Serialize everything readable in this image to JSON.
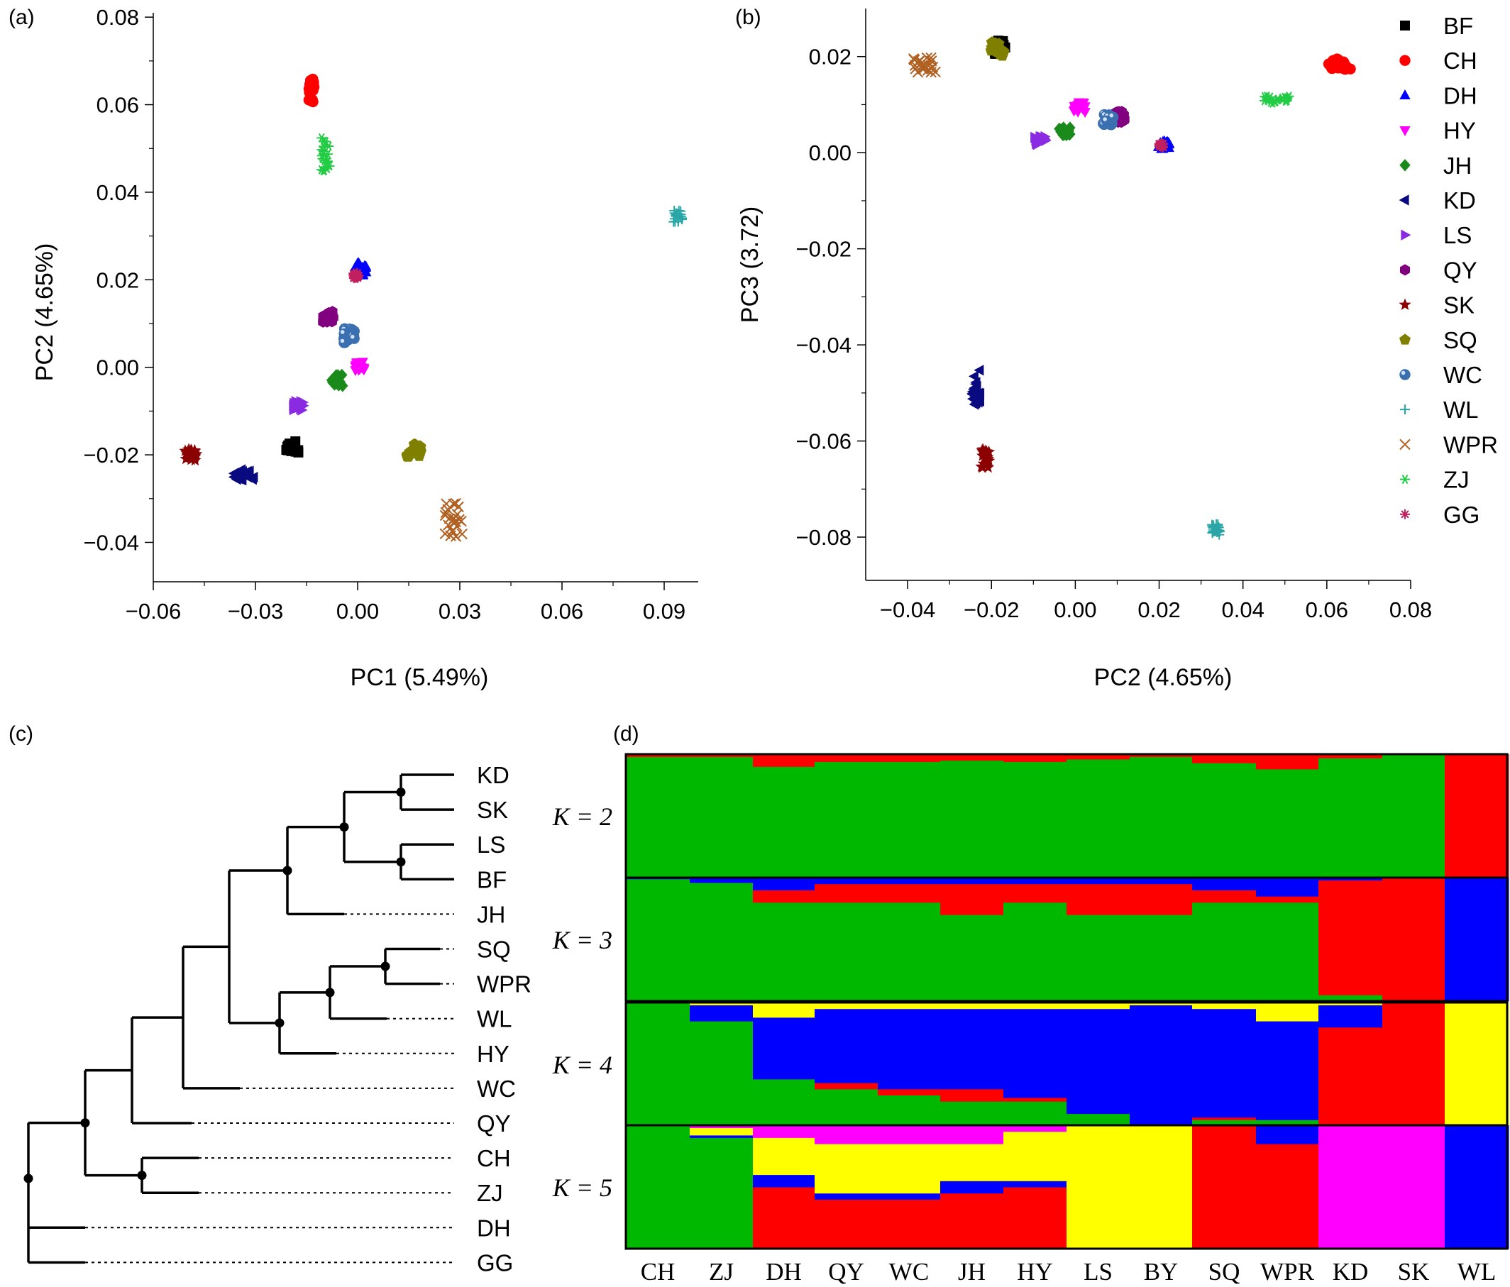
{
  "panel_letters": {
    "a": "(a)",
    "b": "(b)",
    "c": "(c)",
    "d": "(d)"
  },
  "chart_data": [
    {
      "panel": "a",
      "type": "scatter",
      "xlabel": "PC1 (5.49%)",
      "ylabel": "PC2 (4.65%)",
      "xlim": [
        -0.06,
        0.1
      ],
      "ylim": [
        -0.049,
        0.081
      ],
      "x_ticks": [
        "−0.06",
        "−0.03",
        "0.00",
        "0.03",
        "0.06",
        "0.09"
      ],
      "x_tick_values": [
        -0.06,
        -0.03,
        0.0,
        0.03,
        0.06,
        0.09
      ],
      "y_ticks": [
        "−0.04",
        "−0.02",
        "0.00",
        "0.02",
        "0.04",
        "0.06",
        "0.08"
      ],
      "y_tick_values": [
        -0.04,
        -0.02,
        0.0,
        0.02,
        0.04,
        0.06,
        0.08
      ],
      "clusters": [
        {
          "group": "BF",
          "x": -0.019,
          "y": -0.0182
        },
        {
          "group": "CH",
          "x": -0.0135,
          "y": 0.063
        },
        {
          "group": "DH",
          "x": 0.0008,
          "y": 0.0225
        },
        {
          "group": "HY",
          "x": 0.0008,
          "y": 0.0003
        },
        {
          "group": "JH",
          "x": -0.006,
          "y": -0.003
        },
        {
          "group": "KD",
          "x": -0.0335,
          "y": -0.0245
        },
        {
          "group": "LS",
          "x": -0.0175,
          "y": -0.009
        },
        {
          "group": "QY",
          "x": -0.0085,
          "y": 0.0115
        },
        {
          "group": "SK",
          "x": -0.049,
          "y": -0.02
        },
        {
          "group": "SQ",
          "x": 0.0165,
          "y": -0.019
        },
        {
          "group": "WC",
          "x": -0.0025,
          "y": 0.0072
        },
        {
          "group": "WL",
          "x": 0.094,
          "y": 0.0345
        },
        {
          "group": "WPR",
          "x": 0.0285,
          "y": -0.035
        },
        {
          "group": "ZJ",
          "x": -0.0095,
          "y": 0.049
        },
        {
          "group": "GG",
          "x": -0.0005,
          "y": 0.021
        }
      ]
    },
    {
      "panel": "b",
      "type": "scatter",
      "xlabel": "PC2 (4.65%)",
      "ylabel": "PC3 (3.72)",
      "xlim": [
        -0.05,
        0.08
      ],
      "ylim": [
        -0.089,
        0.03
      ],
      "x_ticks": [
        "−0.04",
        "−0.02",
        "0.00",
        "0.02",
        "0.04",
        "0.06",
        "0.08"
      ],
      "x_tick_values": [
        -0.04,
        -0.02,
        0.0,
        0.02,
        0.04,
        0.06,
        0.08
      ],
      "y_ticks": [
        "−0.08",
        "−0.06",
        "−0.04",
        "−0.02",
        "0.00",
        "0.02"
      ],
      "y_tick_values": [
        -0.08,
        -0.06,
        -0.04,
        -0.02,
        0.0,
        0.02
      ],
      "legend_position": "right",
      "clusters": [
        {
          "group": "BF",
          "x": -0.018,
          "y": 0.022
        },
        {
          "group": "CH",
          "x": 0.063,
          "y": 0.0185
        },
        {
          "group": "DH",
          "x": 0.021,
          "y": 0.0015
        },
        {
          "group": "HY",
          "x": 0.001,
          "y": 0.0095
        },
        {
          "group": "JH",
          "x": -0.0025,
          "y": 0.0045
        },
        {
          "group": "KD",
          "x": -0.0235,
          "y": -0.049
        },
        {
          "group": "LS",
          "x": -0.0085,
          "y": 0.0025
        },
        {
          "group": "QY",
          "x": 0.011,
          "y": 0.0075
        },
        {
          "group": "SK",
          "x": -0.0215,
          "y": -0.0635
        },
        {
          "group": "SQ",
          "x": -0.0185,
          "y": 0.0215
        },
        {
          "group": "WC",
          "x": 0.008,
          "y": 0.0068
        },
        {
          "group": "WL",
          "x": 0.0335,
          "y": -0.0785
        },
        {
          "group": "WPR",
          "x": -0.036,
          "y": 0.018
        },
        {
          "group": "ZJ",
          "x": 0.048,
          "y": 0.011
        },
        {
          "group": "GG",
          "x": 0.0205,
          "y": 0.0015
        }
      ]
    },
    {
      "panel": "c",
      "type": "tree",
      "tips": [
        "KD",
        "SK",
        "LS",
        "BF",
        "JH",
        "SQ",
        "WPR",
        "WL",
        "HY",
        "WC",
        "QY",
        "CH",
        "ZJ",
        "DH",
        "GG"
      ]
    },
    {
      "panel": "d",
      "type": "bar",
      "stacked": true,
      "categories": [
        "CH",
        "ZJ",
        "DH",
        "QY",
        "WC",
        "JH",
        "HY",
        "LS",
        "BY",
        "SQ",
        "WPR",
        "KD",
        "SK",
        "WL"
      ],
      "rows": [
        {
          "label": "K = 2",
          "colors": [
            "#00b800",
            "#ff0000"
          ],
          "proportions": [
            [
              0.98,
              0.02
            ],
            [
              0.98,
              0.02
            ],
            [
              0.9,
              0.1
            ],
            [
              0.94,
              0.06
            ],
            [
              0.94,
              0.06
            ],
            [
              0.95,
              0.05
            ],
            [
              0.94,
              0.06
            ],
            [
              0.96,
              0.04
            ],
            [
              0.98,
              0.02
            ],
            [
              0.93,
              0.07
            ],
            [
              0.88,
              0.12
            ],
            [
              0.97,
              0.03
            ],
            [
              1.0,
              0.0
            ],
            [
              0.0,
              1.0
            ]
          ]
        },
        {
          "label": "K = 3",
          "colors": [
            "#00b800",
            "#ff0000",
            "#0000ff"
          ],
          "proportions": [
            [
              0.99,
              0.0,
              0.01
            ],
            [
              0.96,
              0.0,
              0.04
            ],
            [
              0.8,
              0.1,
              0.1
            ],
            [
              0.8,
              0.15,
              0.05
            ],
            [
              0.8,
              0.15,
              0.05
            ],
            [
              0.7,
              0.25,
              0.05
            ],
            [
              0.8,
              0.15,
              0.05
            ],
            [
              0.7,
              0.25,
              0.05
            ],
            [
              0.7,
              0.25,
              0.05
            ],
            [
              0.8,
              0.1,
              0.1
            ],
            [
              0.8,
              0.05,
              0.15
            ],
            [
              0.05,
              0.93,
              0.02
            ],
            [
              0.0,
              1.0,
              0.0
            ],
            [
              0.0,
              0.0,
              1.0
            ]
          ]
        },
        {
          "label": "K = 4",
          "colors": [
            "#00b800",
            "#ff0000",
            "#0000ff",
            "#ffff00"
          ],
          "proportions": [
            [
              1.0,
              0.0,
              0.0,
              0.0
            ],
            [
              0.85,
              0.0,
              0.13,
              0.02
            ],
            [
              0.38,
              0.0,
              0.5,
              0.12
            ],
            [
              0.3,
              0.05,
              0.6,
              0.05
            ],
            [
              0.25,
              0.05,
              0.65,
              0.05
            ],
            [
              0.2,
              0.1,
              0.65,
              0.05
            ],
            [
              0.2,
              0.03,
              0.72,
              0.05
            ],
            [
              0.1,
              0.0,
              0.85,
              0.05
            ],
            [
              0.0,
              0.0,
              0.98,
              0.02
            ],
            [
              0.05,
              0.02,
              0.88,
              0.05
            ],
            [
              0.05,
              0.0,
              0.8,
              0.15
            ],
            [
              0.0,
              0.8,
              0.18,
              0.02
            ],
            [
              0.0,
              1.0,
              0.0,
              0.0
            ],
            [
              0.0,
              0.0,
              0.0,
              1.0
            ]
          ]
        },
        {
          "label": "K = 5",
          "colors": [
            "#00b800",
            "#ff0000",
            "#0000ff",
            "#ffff00",
            "#ff00ff"
          ],
          "proportions": [
            [
              1.0,
              0.0,
              0.0,
              0.0,
              0.0
            ],
            [
              0.9,
              0.0,
              0.02,
              0.06,
              0.02
            ],
            [
              0.0,
              0.5,
              0.1,
              0.3,
              0.1
            ],
            [
              0.0,
              0.4,
              0.05,
              0.4,
              0.15
            ],
            [
              0.0,
              0.4,
              0.05,
              0.4,
              0.15
            ],
            [
              0.0,
              0.45,
              0.1,
              0.3,
              0.15
            ],
            [
              0.0,
              0.5,
              0.05,
              0.4,
              0.05
            ],
            [
              0.0,
              0.0,
              0.0,
              1.0,
              0.0
            ],
            [
              0.0,
              0.0,
              0.0,
              1.0,
              0.0
            ],
            [
              0.0,
              1.0,
              0.0,
              0.0,
              0.0
            ],
            [
              0.0,
              0.85,
              0.15,
              0.0,
              0.0
            ],
            [
              0.0,
              0.0,
              0.0,
              0.0,
              1.0
            ],
            [
              0.0,
              0.0,
              0.0,
              0.0,
              1.0
            ],
            [
              0.0,
              0.0,
              1.0,
              0.0,
              0.0
            ]
          ]
        }
      ]
    }
  ],
  "legend": [
    {
      "name": "BF",
      "color": "#000000",
      "marker": "square"
    },
    {
      "name": "CH",
      "color": "#ff0000",
      "marker": "circle"
    },
    {
      "name": "DH",
      "color": "#0000ff",
      "marker": "triangle-up"
    },
    {
      "name": "HY",
      "color": "#ff00ff",
      "marker": "triangle-down"
    },
    {
      "name": "JH",
      "color": "#1a8a1a",
      "marker": "diamond"
    },
    {
      "name": "KD",
      "color": "#0a0a80",
      "marker": "triangle-left"
    },
    {
      "name": "LS",
      "color": "#8a2be2",
      "marker": "triangle-right"
    },
    {
      "name": "QY",
      "color": "#800080",
      "marker": "hexagon"
    },
    {
      "name": "SK",
      "color": "#8b0000",
      "marker": "star"
    },
    {
      "name": "SQ",
      "color": "#808000",
      "marker": "pentagon"
    },
    {
      "name": "WC",
      "color": "#3a6fb0",
      "marker": "sphere"
    },
    {
      "name": "WL",
      "color": "#2aa6a6",
      "marker": "plus"
    },
    {
      "name": "WPR",
      "color": "#b06020",
      "marker": "cross"
    },
    {
      "name": "ZJ",
      "color": "#22cc44",
      "marker": "asterisk"
    },
    {
      "name": "GG",
      "color": "#c02060",
      "marker": "asterisk-plus"
    }
  ]
}
